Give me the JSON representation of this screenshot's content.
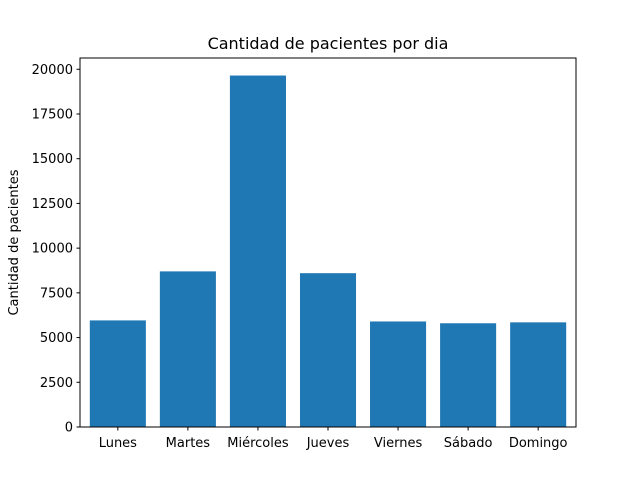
{
  "chart_data": {
    "type": "bar",
    "title": "Cantidad de pacientes por dia",
    "xlabel": "",
    "ylabel": "Cantidad de pacientes",
    "categories": [
      "Lunes",
      "Martes",
      "Miércoles",
      "Jueves",
      "Viernes",
      "Sábado",
      "Domingo"
    ],
    "values": [
      5960,
      8700,
      19650,
      8600,
      5900,
      5800,
      5850
    ],
    "ylim": [
      0,
      20630
    ],
    "yticks": [
      0,
      2500,
      5000,
      7500,
      10000,
      12500,
      15000,
      17500,
      20000
    ],
    "ytick_labels": [
      "0",
      "2500",
      "5000",
      "7500",
      "10000",
      "12500",
      "15000",
      "17500",
      "20000"
    ],
    "bar_color": "#1f77b4",
    "grid": false,
    "legend": false
  }
}
